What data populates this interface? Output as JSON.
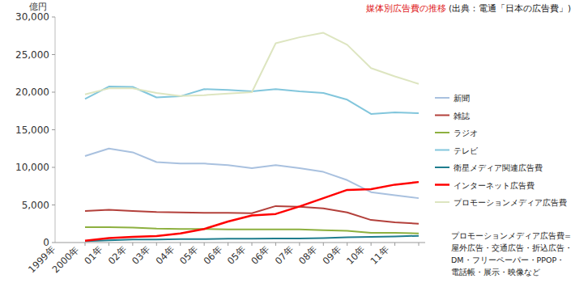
{
  "chart_data": {
    "type": "line",
    "title": "媒体別広告費の推移",
    "subtitle": "(出典：電通「日本の広告費」)",
    "y_label": "億円",
    "annotation": "プロモーションメディア広告費=屋外広告・交通広告・折込広告・DM・フリーペーパー・PPOP・電話帳・展示・映像など",
    "categories": [
      "1999年",
      "2000年",
      "01年",
      "02年",
      "03年",
      "04年",
      "05年",
      "06年",
      "05年",
      "06年",
      "07年",
      "08年",
      "09年",
      "10年",
      "11年"
    ],
    "series": [
      {
        "name": "新聞",
        "color": "#a9c1df",
        "values": [
          11500,
          12500,
          12000,
          10700,
          10500,
          10500,
          10300,
          9900,
          10300,
          9900,
          9400,
          8300,
          6700,
          6300,
          5900
        ]
      },
      {
        "name": "雑誌",
        "color": "#b3403b",
        "values": [
          4200,
          4350,
          4200,
          4050,
          4000,
          3950,
          3950,
          3900,
          4850,
          4750,
          4550,
          4000,
          3000,
          2700,
          2500
        ]
      },
      {
        "name": "ラジオ",
        "color": "#8db03f",
        "values": [
          2050,
          2050,
          2000,
          1850,
          1800,
          1800,
          1750,
          1750,
          1750,
          1750,
          1650,
          1550,
          1300,
          1300,
          1200
        ]
      },
      {
        "name": "テレビ",
        "color": "#82c6dc",
        "values": [
          19100,
          20750,
          20700,
          19300,
          19450,
          20400,
          20300,
          20100,
          20400,
          20100,
          19900,
          19000,
          17100,
          17300,
          17200
        ]
      },
      {
        "name": "衛星メディア関連広告費",
        "color": "#1f7d8e",
        "values": [
          200,
          300,
          400,
          400,
          450,
          450,
          500,
          500,
          550,
          550,
          600,
          700,
          750,
          800,
          900
        ]
      },
      {
        "name": "インターネット広告費",
        "color": "#ff0000",
        "values": [
          250,
          600,
          750,
          850,
          1200,
          1800,
          2800,
          3600,
          3800,
          4800,
          5900,
          7000,
          7100,
          7700,
          8050
        ]
      },
      {
        "name": "プロモーションメディア広告費",
        "color": "#dde5c0",
        "values": [
          19700,
          20500,
          20500,
          19900,
          19500,
          19600,
          19800,
          20000,
          26500,
          27300,
          27900,
          26300,
          23200,
          22100,
          21100
        ]
      }
    ],
    "ylim": [
      0,
      30000
    ],
    "yticks": [
      0,
      {
        "value": 5000,
        "label": "5,000"
      },
      {
        "value": 10000,
        "label": "10,000"
      },
      {
        "value": 15000,
        "label": "15,000"
      },
      {
        "value": 20000,
        "label": "20,000"
      },
      {
        "value": 25000,
        "label": "25,000"
      },
      {
        "value": 30000,
        "label": "30,000"
      }
    ],
    "grid": false,
    "legend": "right"
  }
}
